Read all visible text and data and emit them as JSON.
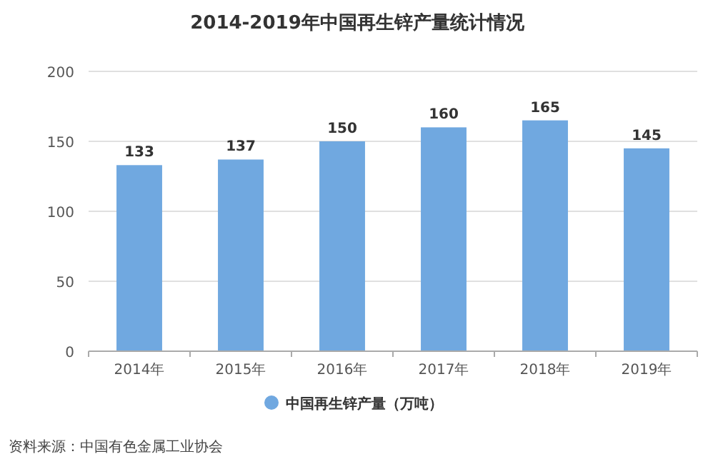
{
  "chart_data": {
    "type": "bar",
    "title": "2014-2019年中国再生锌产量统计情况",
    "categories": [
      "2014年",
      "2015年",
      "2016年",
      "2017年",
      "2018年",
      "2019年"
    ],
    "series": [
      {
        "name": "中国再生锌产量（万吨）",
        "color": "#70a8e0",
        "values": [
          133,
          137,
          150,
          160,
          165,
          145
        ]
      }
    ],
    "ylim": [
      0,
      200
    ],
    "yticks": [
      0,
      50,
      100,
      150,
      200
    ],
    "grid": "y",
    "legend": "bottom",
    "data_labels": true,
    "annotations": [
      "资料来源：中国有色金属工业协会"
    ]
  }
}
